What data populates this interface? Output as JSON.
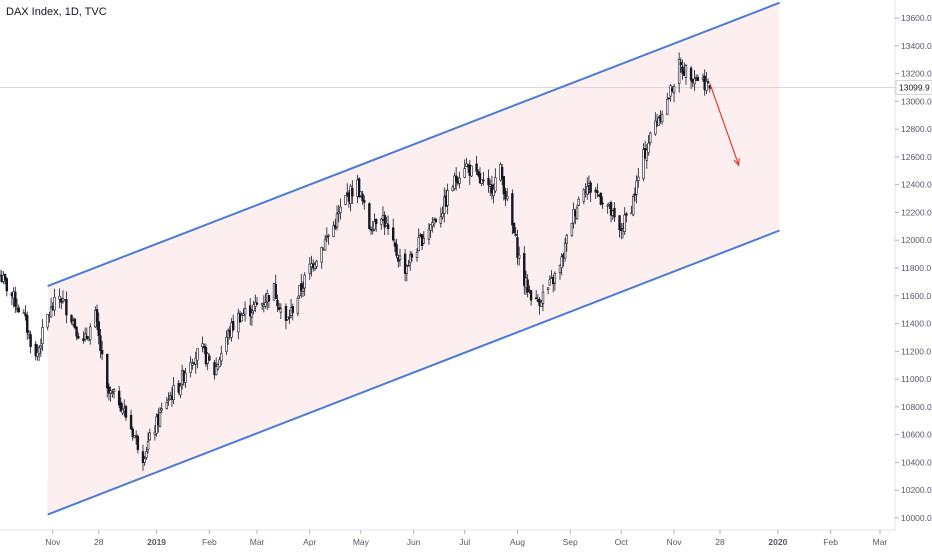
{
  "title": "DAX Index, 1D, TVC",
  "colors": {
    "channel_line": "#4a7bd6",
    "channel_fill": "#fdecec",
    "candles": "#131722",
    "arrow": "#e53935",
    "axis_text": "#555a66",
    "price_line": "#d8d8d8",
    "price_tag_bg": "#ffffff"
  },
  "chart_data": {
    "type": "candlestick",
    "title": "DAX Index, 1D, TVC",
    "ylim": [
      9950,
      13750
    ],
    "y_ticks": [
      "10000.0",
      "10200.0",
      "10400.0",
      "10600.0",
      "10800.0",
      "11000.0",
      "11200.0",
      "11400.0",
      "11600.0",
      "11800.0",
      "12000.0",
      "12200.0",
      "12400.0",
      "12600.0",
      "12800.0",
      "13000.0",
      "13200.0",
      "13400.0",
      "13600.0"
    ],
    "x_ticks": [
      "Nov",
      "28",
      "2019",
      "Feb",
      "Mar",
      "Apr",
      "May",
      "Jun",
      "Jul",
      "Aug",
      "Sep",
      "Oct",
      "Nov",
      "28",
      "2020",
      "Feb",
      "Mar"
    ],
    "last_price": "13099.9",
    "channel": {
      "upper": [
        {
          "x": "2018-10-29",
          "y": 11670
        },
        {
          "x": "2020-01-02",
          "y": 13710
        }
      ],
      "lower": [
        {
          "x": "2018-10-29",
          "y": 10025
        },
        {
          "x": "2020-01-02",
          "y": 12070
        }
      ]
    },
    "projection_arrow": {
      "from": {
        "x": "2019-11-22",
        "y": 13130
      },
      "to": {
        "x": "2019-12-09",
        "y": 12540
      }
    },
    "path_points": [
      [
        "2018-10-01",
        11750
      ],
      [
        "2018-10-08",
        11600
      ],
      [
        "2018-10-15",
        11450
      ],
      [
        "2018-10-22",
        11150
      ],
      [
        "2018-10-29",
        11450
      ],
      [
        "2018-11-05",
        11600
      ],
      [
        "2018-11-12",
        11450
      ],
      [
        "2018-11-19",
        11250
      ],
      [
        "2018-11-26",
        11450
      ],
      [
        "2018-12-03",
        10900
      ],
      [
        "2018-12-10",
        10850
      ],
      [
        "2018-12-17",
        10650
      ],
      [
        "2018-12-24",
        10450
      ],
      [
        "2018-12-31",
        10650
      ],
      [
        "2019-01-07",
        10850
      ],
      [
        "2019-01-14",
        10950
      ],
      [
        "2019-01-21",
        11150
      ],
      [
        "2019-01-28",
        11200
      ],
      [
        "2019-02-04",
        11050
      ],
      [
        "2019-02-11",
        11300
      ],
      [
        "2019-02-18",
        11450
      ],
      [
        "2019-02-25",
        11500
      ],
      [
        "2019-03-04",
        11550
      ],
      [
        "2019-03-11",
        11650
      ],
      [
        "2019-03-18",
        11400
      ],
      [
        "2019-03-25",
        11600
      ],
      [
        "2019-04-01",
        11800
      ],
      [
        "2019-04-08",
        11950
      ],
      [
        "2019-04-15",
        12100
      ],
      [
        "2019-04-22",
        12300
      ],
      [
        "2019-04-29",
        12400
      ],
      [
        "2019-05-06",
        12100
      ],
      [
        "2019-05-13",
        12200
      ],
      [
        "2019-05-20",
        11950
      ],
      [
        "2019-05-27",
        11800
      ],
      [
        "2019-06-03",
        11950
      ],
      [
        "2019-06-10",
        12100
      ],
      [
        "2019-06-17",
        12200
      ],
      [
        "2019-06-24",
        12400
      ],
      [
        "2019-07-01",
        12550
      ],
      [
        "2019-07-08",
        12450
      ],
      [
        "2019-07-15",
        12350
      ],
      [
        "2019-07-22",
        12500
      ],
      [
        "2019-07-29",
        12100
      ],
      [
        "2019-08-05",
        11700
      ],
      [
        "2019-08-12",
        11550
      ],
      [
        "2019-08-19",
        11650
      ],
      [
        "2019-08-26",
        11800
      ],
      [
        "2019-09-02",
        12150
      ],
      [
        "2019-09-09",
        12400
      ],
      [
        "2019-09-16",
        12350
      ],
      [
        "2019-09-23",
        12250
      ],
      [
        "2019-09-30",
        12050
      ],
      [
        "2019-10-07",
        12250
      ],
      [
        "2019-10-14",
        12600
      ],
      [
        "2019-10-21",
        12850
      ],
      [
        "2019-10-28",
        13000
      ],
      [
        "2019-11-04",
        13250
      ],
      [
        "2019-11-11",
        13200
      ],
      [
        "2019-11-18",
        13150
      ],
      [
        "2019-11-22",
        13100
      ]
    ]
  }
}
